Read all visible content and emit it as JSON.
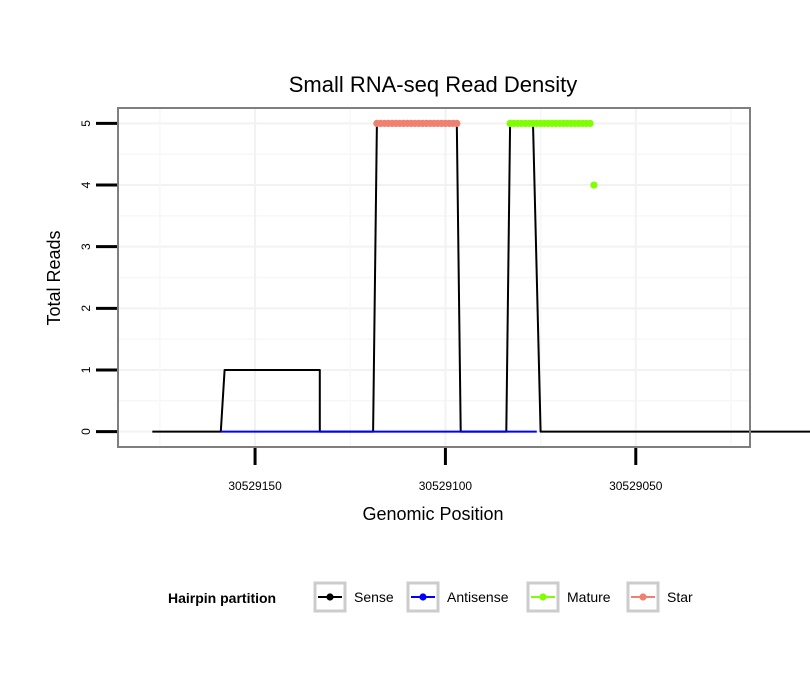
{
  "chart_data": {
    "type": "line",
    "title": "Small RNA-seq Read Density",
    "xlabel": "Genomic Position",
    "ylabel": "Total Reads",
    "x_reversed": true,
    "xlim": [
      30529020,
      30529186
    ],
    "ylim": [
      -0.25,
      5.25
    ],
    "x_ticks": [
      30529150,
      30529100,
      30529050
    ],
    "x_tick_labels": [
      "30529150",
      "30529100",
      "30529050"
    ],
    "y_ticks": [
      0,
      1,
      2,
      3,
      4,
      5
    ],
    "y_tick_labels": [
      "0",
      "1",
      "2",
      "3",
      "4",
      "5"
    ],
    "grid": true,
    "legend_title": "Hairpin partition",
    "legend_position": "bottom",
    "series": [
      {
        "name": "Sense",
        "color": "#000000",
        "mark": "line",
        "x": [
          30529177,
          30529159,
          30529158,
          30529133,
          30529133,
          30529119,
          30529118,
          30529097,
          30529096,
          30529084,
          30529083,
          30529077,
          30529075,
          30529004
        ],
        "y": [
          0,
          0,
          1,
          1,
          0,
          0,
          5,
          5,
          0,
          0,
          5,
          5,
          0,
          0
        ]
      },
      {
        "name": "Antisense",
        "color": "#0000ff",
        "mark": "line",
        "x": [
          30529159,
          30529076
        ],
        "y": [
          0,
          0
        ]
      },
      {
        "name": "Mature",
        "color": "#7fff00",
        "mark": "point",
        "x": [
          30529083,
          30529082,
          30529081,
          30529080,
          30529079,
          30529078,
          30529077,
          30529076,
          30529075,
          30529074,
          30529073,
          30529072,
          30529071,
          30529070,
          30529069,
          30529068,
          30529067,
          30529066,
          30529065,
          30529064,
          30529063,
          30529062,
          30529061
        ],
        "y": [
          5,
          5,
          5,
          5,
          5,
          5,
          5,
          5,
          5,
          5,
          5,
          5,
          5,
          5,
          5,
          5,
          5,
          5,
          5,
          5,
          5,
          5,
          4
        ]
      },
      {
        "name": "Star",
        "color": "#f08070",
        "mark": "point",
        "x": [
          30529118,
          30529117,
          30529116,
          30529115,
          30529114,
          30529113,
          30529112,
          30529111,
          30529110,
          30529109,
          30529108,
          30529107,
          30529106,
          30529105,
          30529104,
          30529103,
          30529102,
          30529101,
          30529100,
          30529099,
          30529098,
          30529097
        ],
        "y": [
          5,
          5,
          5,
          5,
          5,
          5,
          5,
          5,
          5,
          5,
          5,
          5,
          5,
          5,
          5,
          5,
          5,
          5,
          5,
          5,
          5,
          5
        ]
      }
    ]
  }
}
